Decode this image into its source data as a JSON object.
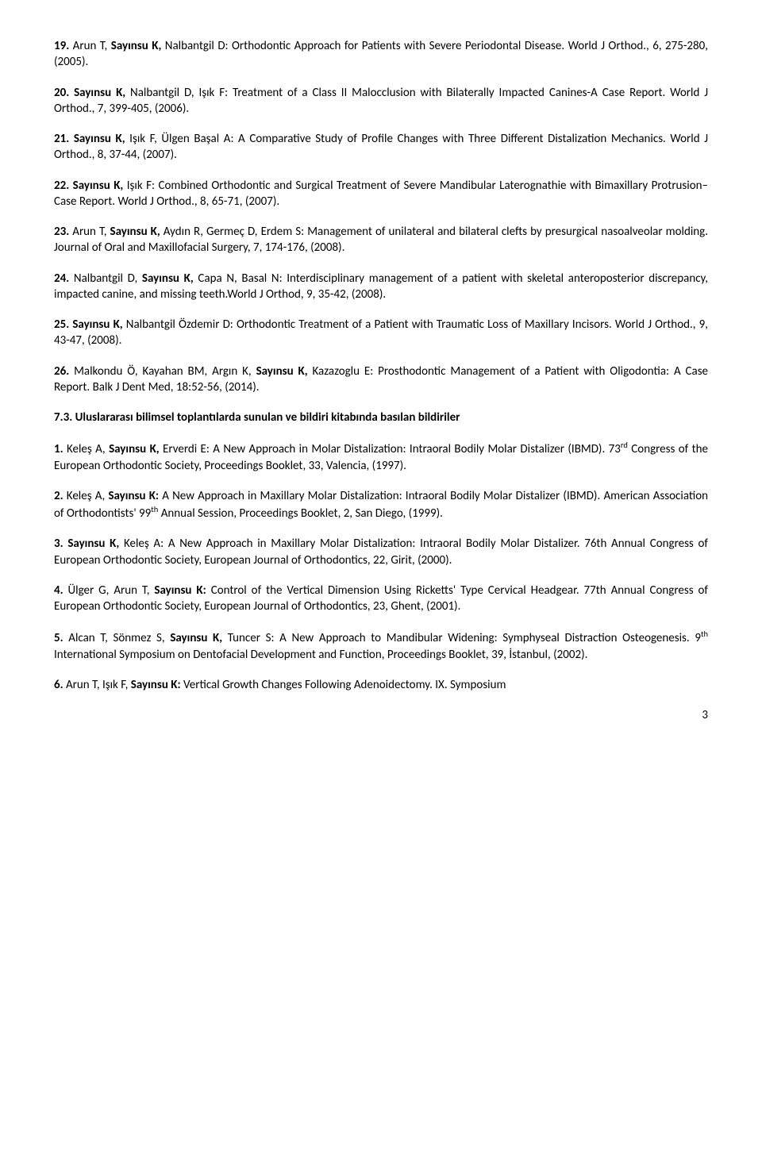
{
  "refs": [
    {
      "num": "19.",
      "prefix": "Arun T, ",
      "boldname": "Sayınsu K,",
      "suffix": "  Nalbantgil D: Orthodontic Approach for Patients with Severe Periodontal Disease. World J Orthod., 6, 275-280, (2005)."
    },
    {
      "num": "20.",
      "prefix": "",
      "boldname": "Sayınsu K,",
      "suffix": "  Nalbantgil D, Işık F: Treatment of a Class II Malocclusion with Bilaterally Impacted Canines-A Case Report. World J Orthod., 7, 399-405, (2006)."
    },
    {
      "num": "21.",
      "prefix": "",
      "boldname": "Sayınsu K,",
      "suffix": " Işık F, Ülgen Başal A: A Comparative Study of Profile Changes with Three Different Distalization Mechanics. World J Orthod., 8, 37-44, (2007)."
    },
    {
      "num": "22.",
      "prefix": "",
      "boldname": "Sayınsu K,",
      "suffix": " Işık F: Combined Orthodontic and Surgical Treatment of Severe Mandibular Laterognathie with Bimaxillary Protrusion– Case Report. World J Orthod., 8, 65-71, (2007)."
    },
    {
      "num": "23.",
      "prefix": "Arun T, ",
      "boldname": "Sayınsu K,",
      "suffix": " Aydın R, Germeç D, Erdem S: Management of unilateral and bilateral clefts by presurgical nasoalveolar molding. Journal of Oral and Maxillofacial Surgery, 7, 174-176, (2008)."
    },
    {
      "num": "24.",
      "prefix": "Nalbantgil D, ",
      "boldname": "Sayınsu K,",
      "suffix": "  Capa N,  Basal N: Interdisciplinary management of a patient with skeletal anteroposterior discrepancy, impacted canine, and missing teeth.World J Orthod, 9, 35-42, (2008)."
    },
    {
      "num": "25.",
      "prefix": "",
      "boldname": "Sayınsu K,",
      "suffix": " Nalbantgil Özdemir D: Orthodontic Treatment of a Patient with Traumatic Loss of Maxillary Incisors. World J Orthod., 9, 43-47, (2008)."
    },
    {
      "num": "26.",
      "prefix": "Malkondu Ö, Kayahan BM, Argın K,  ",
      "boldname": "Sayınsu K,",
      "suffix": "  Kazazoglu E:  Prosthodontic Management of a Patient with Oligodontia: A Case Report. Balk J Dent Med, 18:52-56, (2014)."
    }
  ],
  "section_heading": "7.3. Uluslararası bilimsel toplantılarda sunulan ve bildiri kitabında basılan bildiriler",
  "refs2": [
    {
      "num": "1.",
      "prefix": "Keleş A, ",
      "boldname": "Sayınsu K,",
      "suffix": "  Erverdi E: A New Approach in Molar Distalization: Intraoral Bodily Molar Distalizer (IBMD). 73",
      "sup": "rd",
      "suffix2": " Congress of the European Orthodontic Society, Proceedings Booklet, 33, Valencia, (1997)."
    },
    {
      "num": "2.",
      "prefix": "Keleş A,  ",
      "boldname": "Sayınsu K:",
      "suffix": " A New Approach in Maxillary Molar Distalization: Intraoral Bodily Molar Distalizer (IBMD). American Association of Orthodontists' 99",
      "sup": "th",
      "suffix2": " Annual Session, Proceedings Booklet, 2, San Diego, (1999)."
    },
    {
      "num": "3.",
      "prefix": "",
      "boldname": "Sayınsu K,",
      "suffix": "  Keleş A: A New Approach in Maxillary Molar Distalization: Intraoral Bodily Molar Distalizer. 76th Annual Congress of European Orthodontic Society, European Journal of Orthodontics, 22, Girit, (2000).",
      "sup": "",
      "suffix2": ""
    },
    {
      "num": "4.",
      "prefix": "Ülger G,  Arun T, ",
      "boldname": "Sayınsu K:",
      "suffix": " Control of the Vertical Dimension Using Ricketts' Type Cervical Headgear.  77th Annual Congress of European Orthodontic Society, European Journal of Orthodontics, 23, Ghent, (2001).",
      "sup": "",
      "suffix2": ""
    },
    {
      "num": "5.",
      "prefix": "Alcan T, Sönmez S, ",
      "boldname": "Sayınsu K,",
      "suffix": "  Tuncer S: A New Approach to Mandibular Widening: Symphyseal Distraction Osteogenesis. 9",
      "sup": "th",
      "suffix2": " International Symposium on Dentofacial Development and Function, Proceedings Booklet, 39, İstanbul, (2002)."
    },
    {
      "num": "6.",
      "prefix": "Arun T, Işık F, ",
      "boldname": "Sayınsu K:",
      "suffix": " Vertical Growth Changes Following Adenoidectomy. IX. Symposium",
      "sup": "",
      "suffix2": ""
    }
  ],
  "pagenum": "3"
}
